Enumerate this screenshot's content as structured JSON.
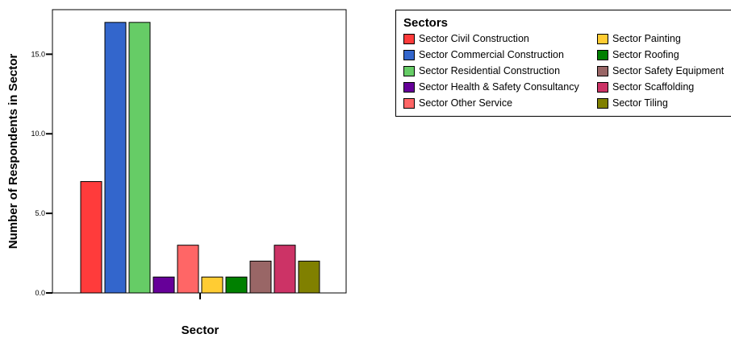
{
  "chart_data": {
    "type": "bar",
    "xlabel": "Sector",
    "ylabel": "Number of Respondents in Sector",
    "ylim": [
      0,
      17.8
    ],
    "yticks": [
      0,
      5,
      10,
      15
    ],
    "ytick_labels": [
      "0.0",
      "5.0",
      "10.0",
      "15.0"
    ],
    "grid": false,
    "legend_position": "top-right",
    "legend_title": "Sectors",
    "categories": [
      "Sector Civil Construction",
      "Sector Commercial Construction",
      "Sector Residential Construction",
      "Sector Health & Safety Consultancy",
      "Sector Other Service",
      "Sector Painting",
      "Sector Roofing",
      "Sector Safety Equipment",
      "Sector Scaffolding",
      "Sector Tiling"
    ],
    "values": [
      7,
      17,
      17,
      1,
      3,
      1,
      1,
      2,
      3,
      2
    ],
    "colors": [
      "#ff3b3b",
      "#3366cc",
      "#66cc66",
      "#660099",
      "#ff6666",
      "#ffcc33",
      "#008000",
      "#996666",
      "#cc3366",
      "#808000"
    ]
  }
}
